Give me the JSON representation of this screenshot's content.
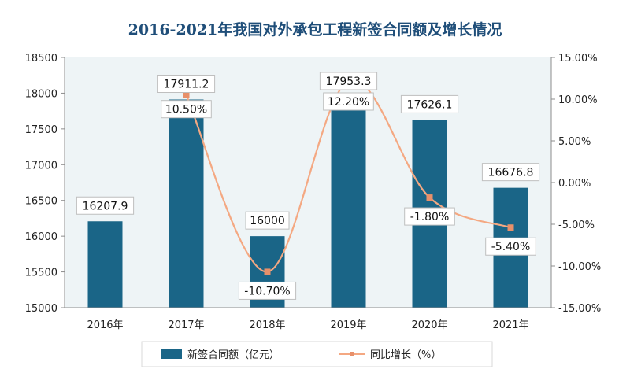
{
  "chart_data": {
    "type": "bar",
    "title": "2016-2021年我国对外承包工程新签合同额及增长情况",
    "categories": [
      "2016年",
      "2017年",
      "2018年",
      "2019年",
      "2020年",
      "2021年"
    ],
    "series": [
      {
        "name": "新签合同额（亿元）",
        "type": "bar",
        "axis": "left",
        "values": [
          16207.9,
          17911.2,
          16000,
          17953.3,
          17626.1,
          16676.8
        ],
        "labels": [
          "16207.9",
          "17911.2",
          "16000",
          "17953.3",
          "17626.1",
          "16676.8"
        ]
      },
      {
        "name": "同比增长（%）",
        "type": "line",
        "axis": "right",
        "values": [
          null,
          10.5,
          -10.7,
          12.2,
          -1.8,
          -5.4
        ],
        "labels": [
          "",
          "10.50%",
          "-10.70%",
          "12.20%",
          "-1.80%",
          "-5.40%"
        ]
      }
    ],
    "y_left": {
      "min": 15000,
      "max": 18500,
      "ticks": [
        "15000",
        "15500",
        "16000",
        "16500",
        "17000",
        "17500",
        "18000",
        "18500"
      ]
    },
    "y_right": {
      "min": -15,
      "max": 15,
      "ticks": [
        "-15.00%",
        "-10.00%",
        "-5.00%",
        "0.00%",
        "5.00%",
        "10.00%",
        "15.00%"
      ]
    },
    "legend_position": "bottom",
    "colors": {
      "bar": "#1a6587",
      "line": "#f4a882",
      "marker": "#e8906a",
      "title": "#1f4e79"
    }
  }
}
